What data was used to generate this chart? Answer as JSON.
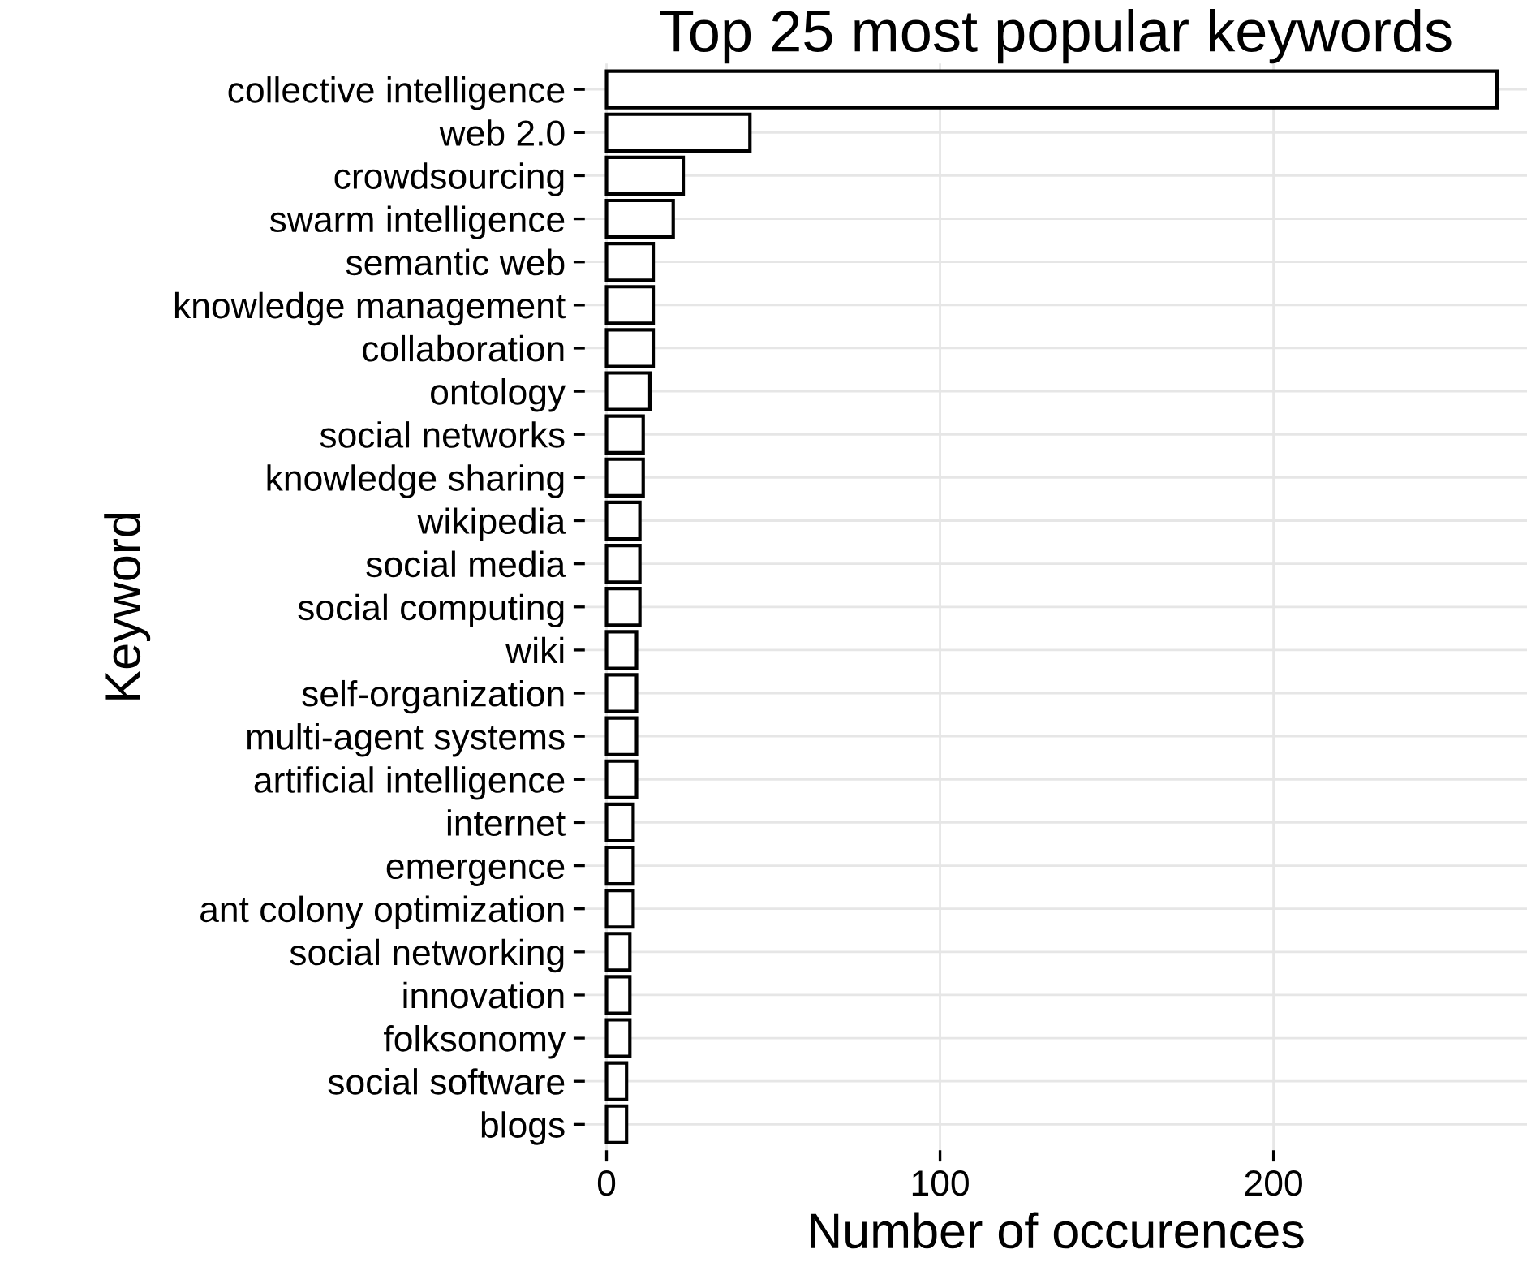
{
  "chart_data": {
    "type": "bar",
    "orientation": "horizontal",
    "title": "Top 25 most popular keywords",
    "xlabel": "Number of occurences",
    "ylabel": "Keyword",
    "categories": [
      "collective intelligence",
      "web 2.0",
      "crowdsourcing",
      "swarm intelligence",
      "semantic web",
      "knowledge management",
      "collaboration",
      "ontology",
      "social networks",
      "knowledge sharing",
      "wikipedia",
      "social media",
      "social computing",
      "wiki",
      "self-organization",
      "multi-agent systems",
      "artificial intelligence",
      "internet",
      "emergence",
      "ant colony optimization",
      "social networking",
      "innovation",
      "folksonomy",
      "social software",
      "blogs"
    ],
    "values": [
      267,
      43,
      23,
      20,
      14,
      14,
      14,
      13,
      11,
      11,
      10,
      10,
      10,
      9,
      9,
      9,
      9,
      8,
      8,
      8,
      7,
      7,
      7,
      6,
      6
    ],
    "color": "#ffffff",
    "xlim": [
      -6.5,
      276
    ],
    "xticks": [
      0,
      100,
      200
    ],
    "grid": true
  }
}
